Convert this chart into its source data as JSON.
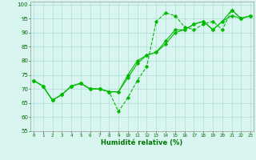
{
  "title": "",
  "xlabel": "Humidité relative (%)",
  "ylabel": "",
  "x_ticks": [
    0,
    1,
    2,
    3,
    4,
    5,
    6,
    7,
    8,
    9,
    10,
    11,
    12,
    13,
    14,
    15,
    16,
    17,
    18,
    19,
    20,
    21,
    22,
    23
  ],
  "ylim": [
    55,
    101
  ],
  "xlim": [
    -0.3,
    23.3
  ],
  "yticks": [
    55,
    60,
    65,
    70,
    75,
    80,
    85,
    90,
    95,
    100
  ],
  "background_color": "#d8f5f0",
  "grid_color": "#b0ddd8",
  "line_color": "#00bb00",
  "line_a_y": [
    73,
    71,
    66,
    68,
    71,
    72,
    70,
    70,
    69,
    62,
    67,
    73,
    78,
    94,
    97,
    96,
    92,
    91,
    93,
    94,
    91,
    98,
    95,
    96
  ],
  "line_b_y": [
    73,
    71,
    66,
    68,
    71,
    72,
    70,
    70,
    69,
    69,
    74,
    79,
    82,
    83,
    86,
    90,
    91,
    93,
    94,
    91,
    94,
    96,
    95,
    96
  ],
  "line_c_y": [
    73,
    71,
    66,
    68,
    71,
    72,
    70,
    70,
    69,
    69,
    75,
    80,
    82,
    83,
    87,
    91,
    91,
    93,
    94,
    91,
    94,
    98,
    95,
    96
  ]
}
